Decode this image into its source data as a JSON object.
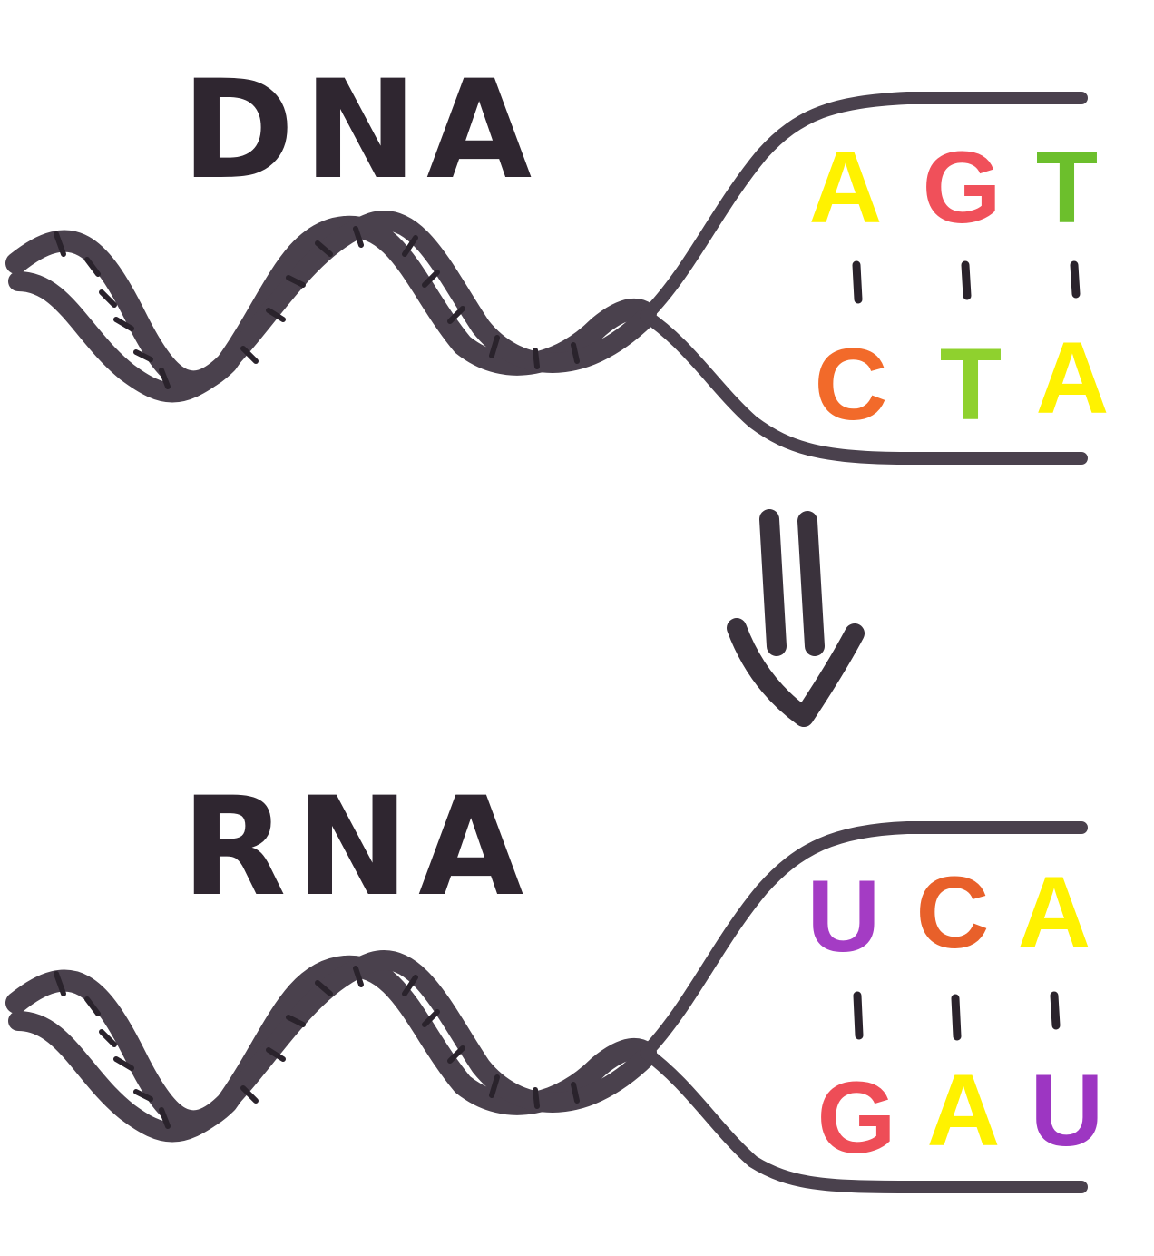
{
  "panels": [
    {
      "title": "DNA",
      "top_row": [
        {
          "letter": "A",
          "color": "#fff200"
        },
        {
          "letter": "G",
          "color": "#f0505a"
        },
        {
          "letter": "T",
          "color": "#6cbf2c"
        }
      ],
      "bottom_row": [
        {
          "letter": "C",
          "color": "#f26a2a"
        },
        {
          "letter": "T",
          "color": "#8fd12e"
        },
        {
          "letter": "A",
          "color": "#fff200"
        }
      ]
    },
    {
      "title": "RNA",
      "top_row": [
        {
          "letter": "U",
          "color": "#a43cc4"
        },
        {
          "letter": "C",
          "color": "#e8602a"
        },
        {
          "letter": "A",
          "color": "#fff200"
        }
      ],
      "bottom_row": [
        {
          "letter": "G",
          "color": "#ee4d57"
        },
        {
          "letter": "A",
          "color": "#fff200"
        },
        {
          "letter": "U",
          "color": "#9d36c2"
        }
      ]
    }
  ],
  "arrow": {
    "icon": "double-arrow-down-icon",
    "color": "#3a323c"
  },
  "colors": {
    "strand": "#4a414d",
    "ink": "#2f2630"
  }
}
